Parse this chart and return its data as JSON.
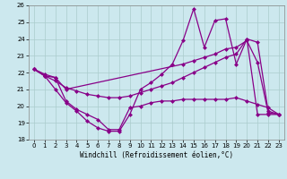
{
  "xlabel": "Windchill (Refroidissement éolien,°C)",
  "background_color": "#cce8ee",
  "grid_color": "#aacccc",
  "line_color": "#880088",
  "xlim": [
    -0.5,
    23.5
  ],
  "ylim": [
    18,
    26
  ],
  "yticks": [
    18,
    19,
    20,
    21,
    22,
    23,
    24,
    25,
    26
  ],
  "xticks": [
    0,
    1,
    2,
    3,
    4,
    5,
    6,
    7,
    8,
    9,
    10,
    11,
    12,
    13,
    14,
    15,
    16,
    17,
    18,
    19,
    20,
    21,
    22,
    23
  ],
  "series1_x": [
    0,
    1,
    2,
    3,
    4,
    5,
    6,
    7,
    8,
    9,
    10,
    11,
    12,
    13,
    14,
    15,
    16,
    17,
    18,
    19,
    20,
    21,
    22,
    23
  ],
  "series1_y": [
    22.2,
    21.8,
    21.0,
    20.2,
    19.7,
    19.1,
    18.7,
    18.5,
    18.5,
    19.5,
    21.0,
    21.4,
    21.9,
    22.5,
    23.9,
    25.8,
    23.5,
    25.1,
    25.2,
    22.5,
    24.0,
    19.5,
    19.5,
    19.5
  ],
  "series2_x": [
    0,
    1,
    2,
    3,
    14,
    15,
    16,
    17,
    18,
    19,
    20,
    21,
    22,
    23
  ],
  "series2_y": [
    22.2,
    21.8,
    21.7,
    21.0,
    22.5,
    22.7,
    22.9,
    23.1,
    23.4,
    23.5,
    23.9,
    22.6,
    19.6,
    19.5
  ],
  "series3_x": [
    0,
    1,
    2,
    3,
    4,
    5,
    6,
    7,
    8,
    9,
    10,
    11,
    12,
    13,
    14,
    15,
    16,
    17,
    18,
    19,
    20,
    21,
    22,
    23
  ],
  "series3_y": [
    22.2,
    21.8,
    21.5,
    21.1,
    20.9,
    20.7,
    20.6,
    20.5,
    20.5,
    20.6,
    20.8,
    21.0,
    21.2,
    21.4,
    21.7,
    22.0,
    22.3,
    22.6,
    22.9,
    23.1,
    24.0,
    23.8,
    19.7,
    19.5
  ],
  "series4_x": [
    0,
    1,
    2,
    3,
    4,
    5,
    6,
    7,
    8,
    9,
    10,
    11,
    12,
    13,
    14,
    15,
    16,
    17,
    18,
    19,
    20,
    21,
    22,
    23
  ],
  "series4_y": [
    22.2,
    21.9,
    21.7,
    20.3,
    19.8,
    19.5,
    19.2,
    18.6,
    18.6,
    19.9,
    20.0,
    20.2,
    20.3,
    20.3,
    20.4,
    20.4,
    20.4,
    20.4,
    20.4,
    20.5,
    20.3,
    20.1,
    19.9,
    19.5
  ]
}
